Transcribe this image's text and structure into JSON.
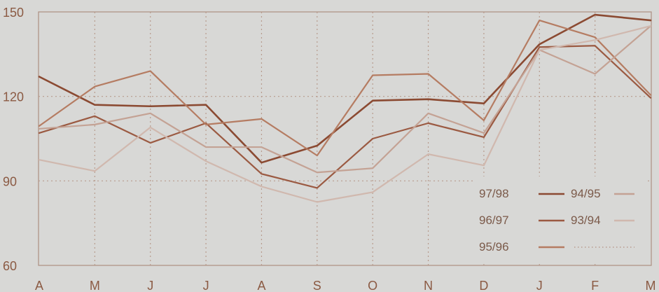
{
  "chart_data": {
    "type": "line",
    "title": "",
    "xlabel": "",
    "ylabel": "",
    "categories": [
      "A",
      "M",
      "J",
      "J",
      "A",
      "S",
      "O",
      "N",
      "D",
      "J",
      "F",
      "M"
    ],
    "y_ticks": [
      "150",
      "120",
      "90",
      "60"
    ],
    "ylim": [
      60,
      150
    ],
    "grid": true,
    "legend_position": "bottom-right",
    "series": [
      {
        "name": "97/98",
        "color": "#8b4a32",
        "values": [
          127,
          117,
          116.5,
          117,
          96.5,
          102.5,
          118.5,
          119,
          117.5,
          138.5,
          149,
          147
        ]
      },
      {
        "name": "96/97",
        "color": "#9b5a42",
        "values": [
          107,
          113,
          103.5,
          110.5,
          92.5,
          87.5,
          105,
          110.5,
          105.5,
          137.5,
          138,
          119.5
        ]
      },
      {
        "name": "95/96",
        "color": "#b57c62",
        "values": [
          109.5,
          123.5,
          129,
          110,
          112,
          99,
          127.5,
          128,
          111.5,
          147,
          141,
          120.5
        ]
      },
      {
        "name": "94/95",
        "color": "#c4a294",
        "values": [
          108.5,
          110,
          114,
          102,
          102,
          93,
          94.5,
          114,
          107,
          136.5,
          128,
          145
        ]
      },
      {
        "name": "93/94",
        "color": "#d0b8ae",
        "values": [
          97.5,
          93.5,
          109,
          97,
          88,
          82.5,
          86,
          99.5,
          95.5,
          136.5,
          140,
          145
        ]
      }
    ],
    "legend": [
      {
        "label": "97/98",
        "style": "solid",
        "color": "#8b4a32"
      },
      {
        "label": "94/95",
        "style": "solid",
        "color": "#c4a294"
      },
      {
        "label": "96/97",
        "style": "solid",
        "color": "#9b5a42"
      },
      {
        "label": "93/94",
        "style": "solid",
        "color": "#d0b8ae"
      },
      {
        "label": "95/96",
        "style": "solid",
        "color": "#b57c62"
      },
      {
        "label": "",
        "style": "dotted",
        "color": "#b79b8d"
      }
    ]
  }
}
